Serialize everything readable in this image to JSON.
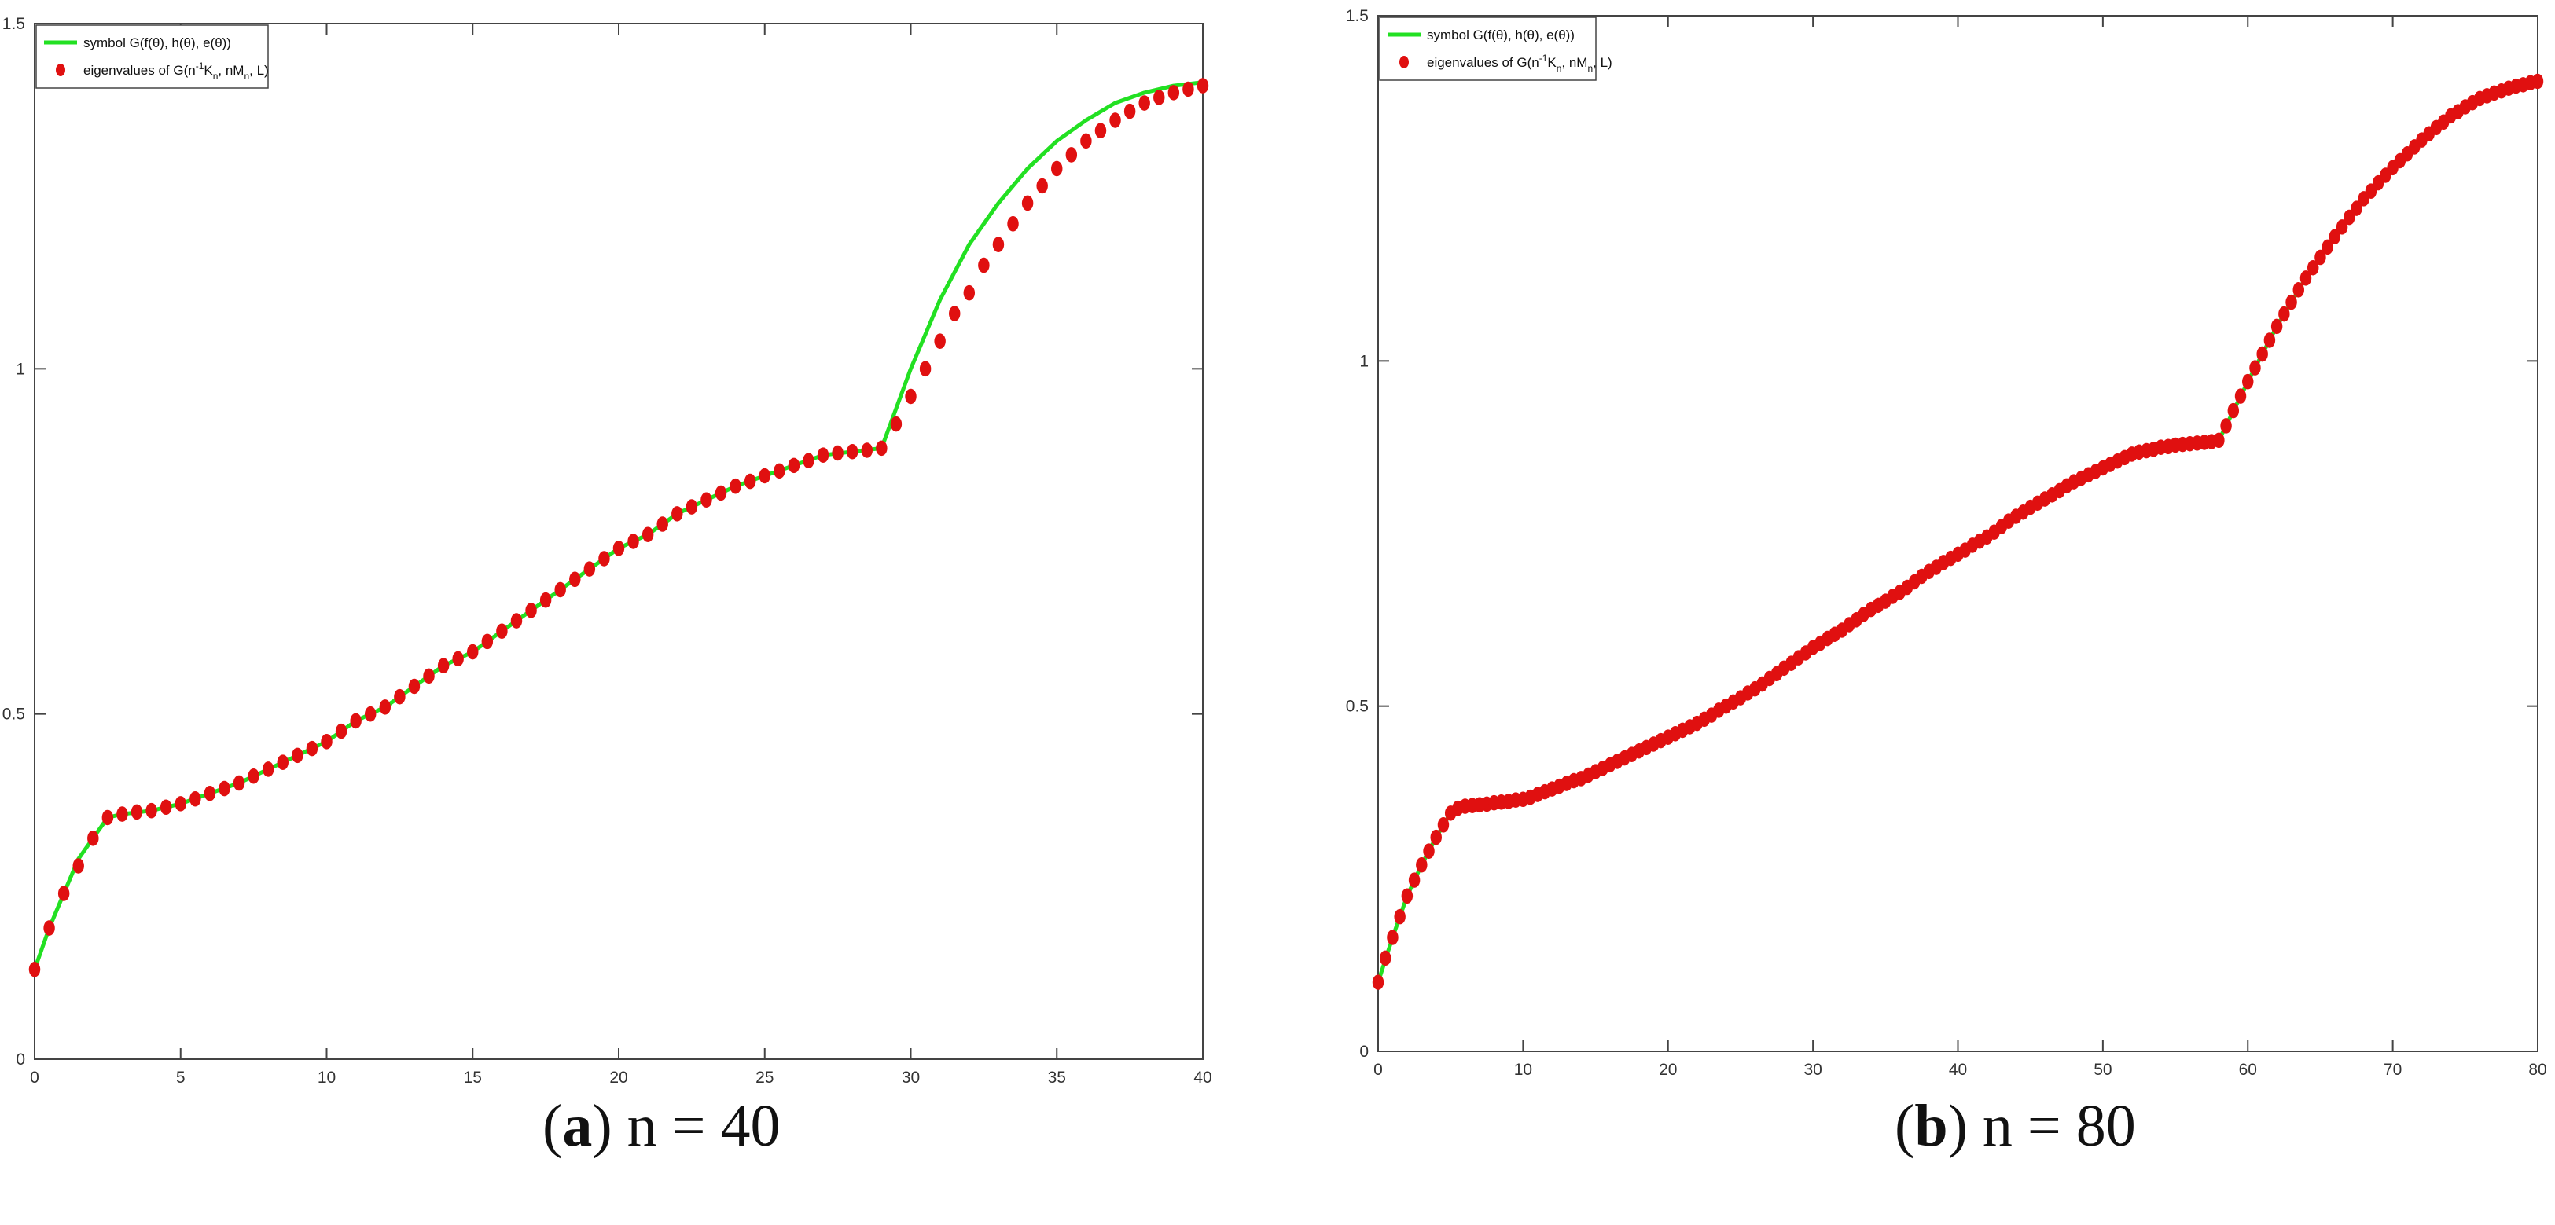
{
  "colors": {
    "symbol_line": "#22e022",
    "eigen_marker": "#e01010",
    "axis": "#444444",
    "background": "#ffffff"
  },
  "legend": {
    "symbol_label": "symbol G(f(θ), h(θ), e(θ))",
    "eigen_label_prefix": "eigenvalues of G(n",
    "eigen_label_sup": "-1",
    "eigen_label_mid1": "K",
    "eigen_label_sub1": "n",
    "eigen_label_mid2": ", nM",
    "eigen_label_sub2": "n",
    "eigen_label_end": ", L)"
  },
  "captions": [
    {
      "letter": "a",
      "text": "n = 40"
    },
    {
      "letter": "b",
      "text": "n = 80"
    }
  ],
  "chart_data": [
    {
      "type": "line",
      "title": "",
      "xlabel": "",
      "ylabel": "",
      "xlim": [
        0,
        40
      ],
      "ylim": [
        0,
        1.5
      ],
      "xticks": [
        0,
        5,
        10,
        15,
        20,
        25,
        30,
        35,
        40
      ],
      "xtick_labels": [
        "0",
        "5",
        "10",
        "15",
        "20",
        "25",
        "30",
        "35",
        "40"
      ],
      "yticks": [
        0,
        0.5,
        1,
        1.5
      ],
      "ytick_labels": [
        "0",
        "0.5",
        "1",
        "1.5"
      ],
      "grid": false,
      "legend_position": "top-left",
      "series": [
        {
          "name": "symbol G(f(θ), h(θ), e(θ))",
          "kind": "line",
          "x": [
            0,
            0.5,
            1,
            1.5,
            2,
            2.5,
            3,
            4,
            5,
            6,
            7,
            8,
            9,
            10,
            11,
            12,
            13,
            14,
            15,
            16,
            17,
            18,
            19,
            20,
            21,
            22,
            23,
            24,
            25,
            26,
            27,
            28,
            29,
            30,
            31,
            32,
            33,
            34,
            35,
            36,
            37,
            38,
            39,
            40
          ],
          "y": [
            0.13,
            0.19,
            0.24,
            0.29,
            0.32,
            0.35,
            0.355,
            0.36,
            0.37,
            0.385,
            0.4,
            0.42,
            0.44,
            0.46,
            0.49,
            0.51,
            0.54,
            0.57,
            0.59,
            0.62,
            0.65,
            0.68,
            0.71,
            0.74,
            0.76,
            0.79,
            0.81,
            0.83,
            0.845,
            0.86,
            0.875,
            0.88,
            0.885,
            1.0,
            1.1,
            1.18,
            1.24,
            1.29,
            1.33,
            1.36,
            1.385,
            1.4,
            1.41,
            1.415
          ]
        },
        {
          "name": "eigenvalues of G(n^-1 K_n, nM_n, L)",
          "kind": "scatter",
          "x": [
            0.0,
            0.5,
            1.0,
            1.5,
            2.0,
            2.5,
            3.0,
            3.5,
            4.0,
            4.5,
            5.0,
            5.5,
            6.0,
            6.5,
            7.0,
            7.5,
            8.0,
            8.5,
            9.0,
            9.5,
            10.0,
            10.5,
            11.0,
            11.5,
            12.0,
            12.5,
            13.0,
            13.5,
            14.0,
            14.5,
            15.0,
            15.5,
            16.0,
            16.5,
            17.0,
            17.5,
            18.0,
            18.5,
            19.0,
            19.5,
            20.0,
            20.5,
            21.0,
            21.5,
            22.0,
            22.5,
            23.0,
            23.5,
            24.0,
            24.5,
            25.0,
            25.5,
            26.0,
            26.5,
            27.0,
            27.5,
            28.0,
            28.5,
            29.0,
            29.5,
            30.0,
            30.5,
            31.0,
            31.5,
            32.0,
            32.5,
            33.0,
            33.5,
            34.0,
            34.5,
            35.0,
            35.5,
            36.0,
            36.5,
            37.0,
            37.5,
            38.0,
            38.5,
            39.0,
            39.5,
            40.0
          ],
          "y": [
            0.13,
            0.19,
            0.24,
            0.28,
            0.32,
            0.35,
            0.355,
            0.358,
            0.36,
            0.365,
            0.37,
            0.377,
            0.385,
            0.392,
            0.4,
            0.41,
            0.42,
            0.43,
            0.44,
            0.45,
            0.46,
            0.475,
            0.49,
            0.5,
            0.51,
            0.525,
            0.54,
            0.555,
            0.57,
            0.58,
            0.59,
            0.605,
            0.62,
            0.635,
            0.65,
            0.665,
            0.68,
            0.695,
            0.71,
            0.725,
            0.74,
            0.75,
            0.76,
            0.775,
            0.79,
            0.8,
            0.81,
            0.82,
            0.83,
            0.837,
            0.845,
            0.852,
            0.86,
            0.867,
            0.875,
            0.878,
            0.88,
            0.882,
            0.885,
            0.92,
            0.96,
            1.0,
            1.04,
            1.08,
            1.11,
            1.15,
            1.18,
            1.21,
            1.24,
            1.265,
            1.29,
            1.31,
            1.33,
            1.345,
            1.36,
            1.373,
            1.385,
            1.393,
            1.4,
            1.405,
            1.41
          ]
        }
      ]
    },
    {
      "type": "line",
      "title": "",
      "xlabel": "",
      "ylabel": "",
      "xlim": [
        0,
        80
      ],
      "ylim": [
        0,
        1.5
      ],
      "xticks": [
        0,
        10,
        20,
        30,
        40,
        50,
        60,
        70,
        80
      ],
      "xtick_labels": [
        "0",
        "10",
        "20",
        "30",
        "40",
        "50",
        "60",
        "70",
        "80"
      ],
      "yticks": [
        0,
        0.5,
        1,
        1.5
      ],
      "ytick_labels": [
        "0",
        "0.5",
        "1",
        "1.5"
      ],
      "grid": false,
      "legend_position": "top-left",
      "series": [
        {
          "name": "symbol G(f(θ), h(θ), e(θ))",
          "kind": "line",
          "x": [
            0,
            1,
            2,
            3,
            4,
            5,
            5.5,
            6,
            8,
            10,
            12,
            14,
            16,
            18,
            20,
            22,
            24,
            26,
            28,
            30,
            32,
            34,
            36,
            38,
            40,
            42,
            44,
            46,
            48,
            50,
            52,
            54,
            56,
            58,
            60,
            62,
            64,
            66,
            68,
            70,
            72,
            74,
            76,
            78,
            80
          ],
          "y": [
            0.1,
            0.165,
            0.225,
            0.27,
            0.31,
            0.345,
            0.355,
            0.357,
            0.36,
            0.365,
            0.38,
            0.395,
            0.415,
            0.435,
            0.455,
            0.475,
            0.5,
            0.525,
            0.555,
            0.585,
            0.61,
            0.64,
            0.665,
            0.695,
            0.72,
            0.745,
            0.775,
            0.8,
            0.825,
            0.845,
            0.865,
            0.875,
            0.88,
            0.885,
            0.97,
            1.05,
            1.12,
            1.18,
            1.235,
            1.28,
            1.32,
            1.355,
            1.38,
            1.395,
            1.405
          ]
        },
        {
          "name": "eigenvalues of G(n^-1 K_n, nM_n, L)",
          "kind": "scatter",
          "x": [
            0,
            0.5,
            1,
            1.5,
            2,
            2.5,
            3,
            3.5,
            4,
            4.5,
            5,
            5.5,
            6,
            6.5,
            7,
            7.5,
            8,
            8.5,
            9,
            9.5,
            10,
            10.5,
            11,
            11.5,
            12,
            12.5,
            13,
            13.5,
            14,
            14.5,
            15,
            15.5,
            16,
            16.5,
            17,
            17.5,
            18,
            18.5,
            19,
            19.5,
            20,
            20.5,
            21,
            21.5,
            22,
            22.5,
            23,
            23.5,
            24,
            24.5,
            25,
            25.5,
            26,
            26.5,
            27,
            27.5,
            28,
            28.5,
            29,
            29.5,
            30,
            30.5,
            31,
            31.5,
            32,
            32.5,
            33,
            33.5,
            34,
            34.5,
            35,
            35.5,
            36,
            36.5,
            37,
            37.5,
            38,
            38.5,
            39,
            39.5,
            40,
            40.5,
            41,
            41.5,
            42,
            42.5,
            43,
            43.5,
            44,
            44.5,
            45,
            45.5,
            46,
            46.5,
            47,
            47.5,
            48,
            48.5,
            49,
            49.5,
            50,
            50.5,
            51,
            51.5,
            52,
            52.5,
            53,
            53.5,
            54,
            54.5,
            55,
            55.5,
            56,
            56.5,
            57,
            57.5,
            58,
            58.5,
            59,
            59.5,
            60,
            60.5,
            61,
            61.5,
            62,
            62.5,
            63,
            63.5,
            64,
            64.5,
            65,
            65.5,
            66,
            66.5,
            67,
            67.5,
            68,
            68.5,
            69,
            69.5,
            70,
            70.5,
            71,
            71.5,
            72,
            72.5,
            73,
            73.5,
            74,
            74.5,
            75,
            75.5,
            76,
            76.5,
            77,
            77.5,
            78,
            78.5,
            79,
            79.5,
            80
          ],
          "y": [
            0.1,
            0.135,
            0.165,
            0.195,
            0.225,
            0.248,
            0.27,
            0.29,
            0.31,
            0.328,
            0.345,
            0.352,
            0.355,
            0.356,
            0.357,
            0.358,
            0.36,
            0.361,
            0.362,
            0.364,
            0.365,
            0.368,
            0.372,
            0.376,
            0.38,
            0.384,
            0.388,
            0.392,
            0.395,
            0.4,
            0.405,
            0.41,
            0.415,
            0.42,
            0.425,
            0.43,
            0.435,
            0.44,
            0.445,
            0.45,
            0.455,
            0.46,
            0.465,
            0.47,
            0.475,
            0.481,
            0.487,
            0.494,
            0.5,
            0.506,
            0.512,
            0.519,
            0.525,
            0.532,
            0.54,
            0.547,
            0.555,
            0.562,
            0.57,
            0.577,
            0.585,
            0.591,
            0.598,
            0.604,
            0.61,
            0.618,
            0.625,
            0.633,
            0.64,
            0.646,
            0.652,
            0.659,
            0.665,
            0.672,
            0.68,
            0.688,
            0.695,
            0.701,
            0.708,
            0.714,
            0.72,
            0.726,
            0.733,
            0.739,
            0.745,
            0.752,
            0.76,
            0.768,
            0.775,
            0.781,
            0.788,
            0.794,
            0.8,
            0.806,
            0.812,
            0.819,
            0.825,
            0.83,
            0.835,
            0.84,
            0.845,
            0.85,
            0.855,
            0.86,
            0.865,
            0.868,
            0.87,
            0.872,
            0.875,
            0.876,
            0.878,
            0.879,
            0.88,
            0.881,
            0.882,
            0.883,
            0.885,
            0.906,
            0.928,
            0.949,
            0.97,
            0.99,
            1.01,
            1.03,
            1.05,
            1.068,
            1.085,
            1.103,
            1.12,
            1.135,
            1.15,
            1.165,
            1.18,
            1.194,
            1.208,
            1.221,
            1.235,
            1.246,
            1.258,
            1.269,
            1.28,
            1.29,
            1.3,
            1.31,
            1.32,
            1.329,
            1.338,
            1.346,
            1.355,
            1.361,
            1.368,
            1.374,
            1.38,
            1.384,
            1.388,
            1.391,
            1.395,
            1.398,
            1.4,
            1.403,
            1.405
          ]
        }
      ]
    }
  ]
}
